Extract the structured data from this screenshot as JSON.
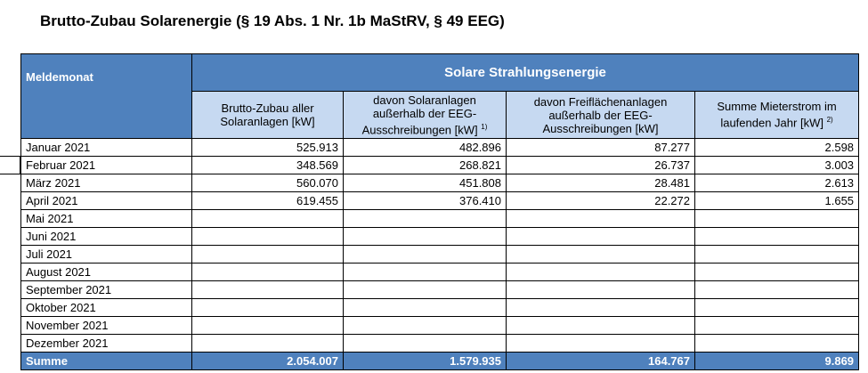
{
  "title": "Brutto-Zubau Solarenergie (§ 19 Abs. 1 Nr. 1b MaStRV, § 49 EEG)",
  "table": {
    "row_header": "Meldemonat",
    "group_header": "Solare Strahlungsenergie",
    "columns": [
      {
        "text": "Brutto-Zubau aller Solaranlagen [kW]"
      },
      {
        "text": "davon Solaranlagen außerhalb der EEG-Ausschreibungen [kW]",
        "note": "1)"
      },
      {
        "text": "davon Freiflächenanlagen außerhalb der EEG-Ausschreibungen [kW]"
      },
      {
        "text": "Summe Mieterstrom im laufenden Jahr [kW]",
        "note": "2)"
      }
    ],
    "rows": [
      {
        "month": "Januar 2021",
        "values": [
          "525.913",
          "482.896",
          "87.277",
          "2.598"
        ]
      },
      {
        "month": "Februar 2021",
        "values": [
          "348.569",
          "268.821",
          "26.737",
          "3.003"
        ]
      },
      {
        "month": "März 2021",
        "values": [
          "560.070",
          "451.808",
          "28.481",
          "2.613"
        ]
      },
      {
        "month": "April 2021",
        "values": [
          "619.455",
          "376.410",
          "22.272",
          "1.655"
        ]
      },
      {
        "month": "Mai 2021"
      },
      {
        "month": "Juni 2021"
      },
      {
        "month": "Juli 2021"
      },
      {
        "month": "August 2021"
      },
      {
        "month": "September 2021"
      },
      {
        "month": "Oktober 2021"
      },
      {
        "month": "November 2021"
      },
      {
        "month": "Dezember 2021"
      }
    ],
    "total": {
      "label": "Summe",
      "values": [
        "2.054.007",
        "1.579.935",
        "164.767",
        "9.869"
      ]
    }
  }
}
